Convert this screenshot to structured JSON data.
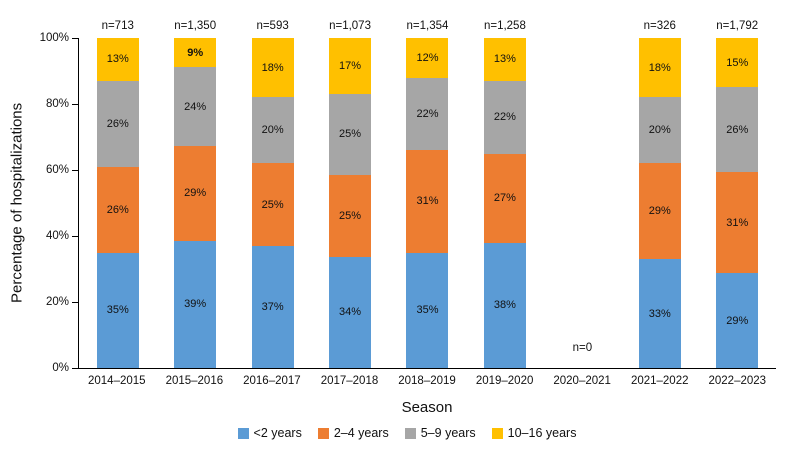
{
  "chart_data": {
    "type": "bar",
    "subtype": "stacked-percentage",
    "title": "",
    "ylabel": "Percentage of hospitalizations",
    "xlabel": "Season",
    "categories": [
      "2014–2015",
      "2015–2016",
      "2016–2017",
      "2017–2018",
      "2018–2019",
      "2019–2020",
      "2020–2021",
      "2021–2022",
      "2022–2023"
    ],
    "n_labels": [
      "n=713",
      "n=1,350",
      "n=593",
      "n=1,073",
      "n=1,354",
      "n=1,258",
      "n=0",
      "n=326",
      "n=1,792"
    ],
    "series": [
      {
        "name": "<2 years",
        "color": "#5B9BD5",
        "values": [
          35,
          39,
          37,
          34,
          35,
          38,
          0,
          33,
          29
        ]
      },
      {
        "name": "2–4 years",
        "color": "#ED7D31",
        "values": [
          26,
          29,
          25,
          25,
          31,
          27,
          0,
          29,
          31
        ]
      },
      {
        "name": "5–9 years",
        "color": "#A6A6A6",
        "values": [
          26,
          24,
          20,
          25,
          22,
          22,
          0,
          20,
          26
        ]
      },
      {
        "name": "10–16 years",
        "color": "#FFC000",
        "values": [
          13,
          9,
          18,
          17,
          12,
          13,
          0,
          18,
          15
        ]
      }
    ],
    "bold_labels": [
      {
        "category_index": 1,
        "series_index": 3
      }
    ],
    "yticks": [
      "0%",
      "20%",
      "40%",
      "60%",
      "80%",
      "100%"
    ],
    "ylim": [
      0,
      100
    ],
    "grid": false,
    "legend_position": "bottom",
    "axis_color": "#000000"
  }
}
